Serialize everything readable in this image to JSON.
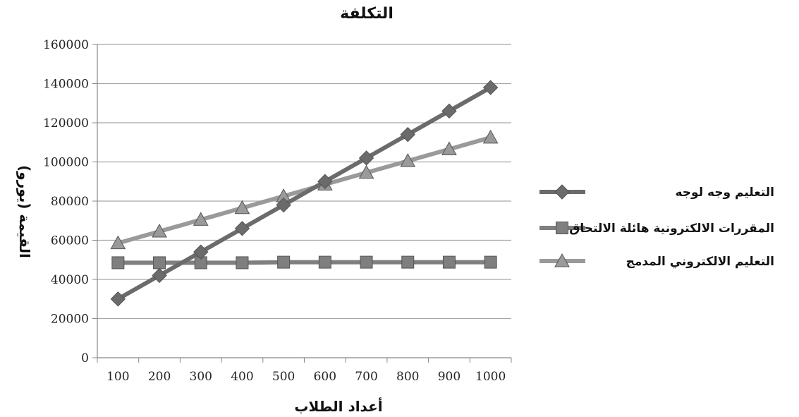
{
  "chart_data": {
    "type": "line",
    "title": "التكلفة",
    "xlabel": "أعداد الطلاب",
    "ylabel": "القيمة (يورو)",
    "categories": [
      "100",
      "200",
      "300",
      "400",
      "500",
      "600",
      "700",
      "800",
      "900",
      "1000"
    ],
    "ylim": [
      0,
      160000
    ],
    "yticks": [
      "0",
      "20000",
      "40000",
      "60000",
      "80000",
      "100000",
      "120000",
      "140000",
      "160000"
    ],
    "grid": true,
    "legend_position": "right",
    "series": [
      {
        "name": "التعليم وجه لوجه",
        "marker": "diamond",
        "color": "#6b6b6b",
        "values": [
          30000,
          42000,
          54000,
          66000,
          78000,
          90000,
          102000,
          114000,
          126000,
          138000
        ]
      },
      {
        "name": "المقررات الالكترونية هائلة الالتحاق",
        "marker": "square",
        "color": "#7f7f7f",
        "values": [
          48500,
          48500,
          48500,
          48500,
          48800,
          48800,
          48800,
          48800,
          48800,
          48800
        ]
      },
      {
        "name": "التعليم الالكتروني المدمج",
        "marker": "triangle",
        "color": "#9a9a9a",
        "values": [
          58500,
          64500,
          70500,
          76500,
          82500,
          88500,
          94500,
          100500,
          106500,
          112500
        ]
      }
    ]
  }
}
